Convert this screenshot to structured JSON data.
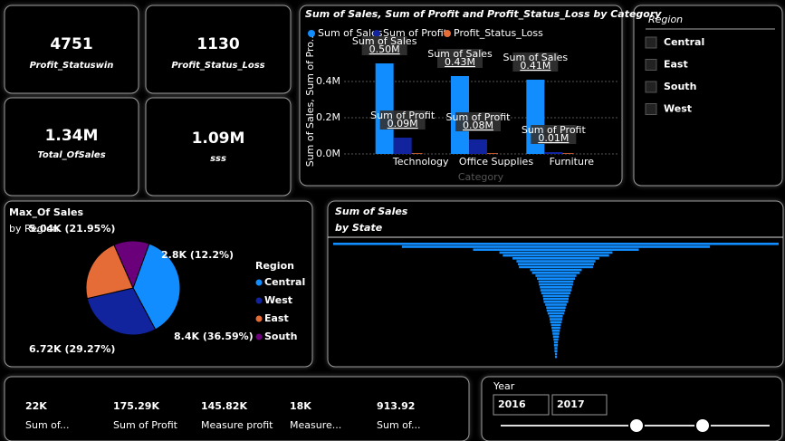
{
  "cards": [
    {
      "value": "4751",
      "label": "Profit_Statuswin"
    },
    {
      "value": "1130",
      "label": "Profit_Status_Loss"
    },
    {
      "value": "1.34M",
      "label": "Total_OfSales"
    },
    {
      "value": "1.09M",
      "label": "sss"
    }
  ],
  "region_slicer": {
    "title": "Region",
    "items": [
      "Central",
      "East",
      "South",
      "West"
    ]
  },
  "chart_data": [
    {
      "type": "bar",
      "title": "Sum of Sales, Sum of Profit and Profit_Status_Loss by Category",
      "y_label": "Sum of Sales, Sum of Pro...",
      "x_label": "Category",
      "categories": [
        "Technology",
        "Office Supplies",
        "Furniture"
      ],
      "series": [
        {
          "name": "Sum of Sales",
          "color": "#118dff",
          "values": [
            0.5,
            0.43,
            0.41
          ],
          "value_labels": [
            "0.50M",
            "0.43M",
            "0.41M"
          ]
        },
        {
          "name": "Sum of Profit",
          "color": "#12239e",
          "values": [
            0.09,
            0.08,
            0.01
          ],
          "value_labels": [
            "0.09M",
            "0.08M",
            "0.01M"
          ]
        },
        {
          "name": "Profit_Status_Loss",
          "color": "#e66c37",
          "values": [
            0.004,
            0.004,
            0.004
          ]
        }
      ],
      "ylim": [
        0,
        0.58
      ],
      "yticks": [
        {
          "value": 0,
          "label": "0.0M"
        },
        {
          "value": 0.2,
          "label": "0.2M"
        },
        {
          "value": 0.4,
          "label": "0.4M"
        }
      ],
      "grid": true
    },
    {
      "type": "pie",
      "title": "Max_Of Sales",
      "subtitle": "by Region",
      "legend_title": "Region",
      "categories": [
        "Central",
        "West",
        "East",
        "South"
      ],
      "colors": [
        "#118dff",
        "#12239e",
        "#e66c37",
        "#6b007b"
      ],
      "values": [
        8.4,
        6.72,
        5.04,
        2.8
      ],
      "value_labels": [
        "8.4K (36.59%)",
        "6.72K (29.27%)",
        "5.04K (21.95%)",
        "2.8K (12.2%)"
      ]
    },
    {
      "type": "funnel",
      "title": "Sum of Sales",
      "subtitle": "by State",
      "color": "#118dff",
      "categories": [
        null,
        null,
        null,
        null,
        null,
        null,
        null,
        null,
        null,
        null,
        null,
        null,
        null,
        null,
        null,
        null,
        null,
        null,
        null,
        null,
        null,
        null,
        null,
        null,
        null,
        null,
        null,
        null,
        null,
        null,
        null,
        null,
        null,
        null,
        null,
        null,
        null,
        null,
        null,
        null
      ],
      "values": [
        457,
        316,
        170,
        116,
        109,
        89,
        81,
        78,
        76,
        53,
        49,
        42,
        39,
        36,
        35,
        33,
        32,
        30,
        27,
        26,
        25,
        22,
        20,
        19,
        17,
        14,
        13,
        12,
        10,
        9,
        8,
        7,
        6,
        5,
        4,
        4,
        3,
        3,
        2,
        2
      ]
    }
  ],
  "bottom_cards": [
    {
      "value": "22K",
      "label": "Sum of..."
    },
    {
      "value": "175.29K",
      "label": "Sum of Profit"
    },
    {
      "value": "145.82K",
      "label": "Measure profit"
    },
    {
      "value": "18K",
      "label": "Measure..."
    },
    {
      "value": "913.92",
      "label": "Sum of..."
    }
  ],
  "year_slicer": {
    "title": "Year",
    "from": "2016",
    "to": "2017"
  }
}
